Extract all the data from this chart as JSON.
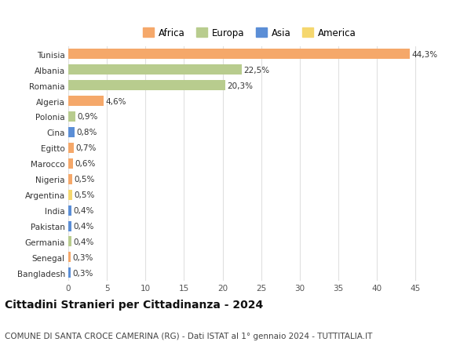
{
  "countries": [
    "Tunisia",
    "Albania",
    "Romania",
    "Algeria",
    "Polonia",
    "Cina",
    "Egitto",
    "Marocco",
    "Nigeria",
    "Argentina",
    "India",
    "Pakistan",
    "Germania",
    "Senegal",
    "Bangladesh"
  ],
  "values": [
    44.3,
    22.5,
    20.3,
    4.6,
    0.9,
    0.8,
    0.7,
    0.6,
    0.5,
    0.5,
    0.4,
    0.4,
    0.4,
    0.3,
    0.3
  ],
  "labels": [
    "44,3%",
    "22,5%",
    "20,3%",
    "4,6%",
    "0,9%",
    "0,8%",
    "0,7%",
    "0,6%",
    "0,5%",
    "0,5%",
    "0,4%",
    "0,4%",
    "0,4%",
    "0,3%",
    "0,3%"
  ],
  "continents": [
    "Africa",
    "Europa",
    "Europa",
    "Africa",
    "Europa",
    "Asia",
    "Africa",
    "Africa",
    "Africa",
    "America",
    "Asia",
    "Asia",
    "Europa",
    "Africa",
    "Asia"
  ],
  "colors": {
    "Africa": "#F5A86A",
    "Europa": "#B8CC8E",
    "Asia": "#5B8ED6",
    "America": "#F5D76E"
  },
  "legend_order": [
    "Africa",
    "Europa",
    "Asia",
    "America"
  ],
  "title": "Cittadini Stranieri per Cittadinanza - 2024",
  "subtitle": "COMUNE DI SANTA CROCE CAMERINA (RG) - Dati ISTAT al 1° gennaio 2024 - TUTTITALIA.IT",
  "xlim": [
    0,
    47
  ],
  "xticks": [
    0,
    5,
    10,
    15,
    20,
    25,
    30,
    35,
    40,
    45
  ],
  "background_color": "#ffffff",
  "grid_color": "#e0e0e0",
  "bar_height": 0.65,
  "title_fontsize": 10,
  "subtitle_fontsize": 7.5,
  "label_fontsize": 7.5,
  "tick_fontsize": 7.5,
  "legend_fontsize": 8.5
}
